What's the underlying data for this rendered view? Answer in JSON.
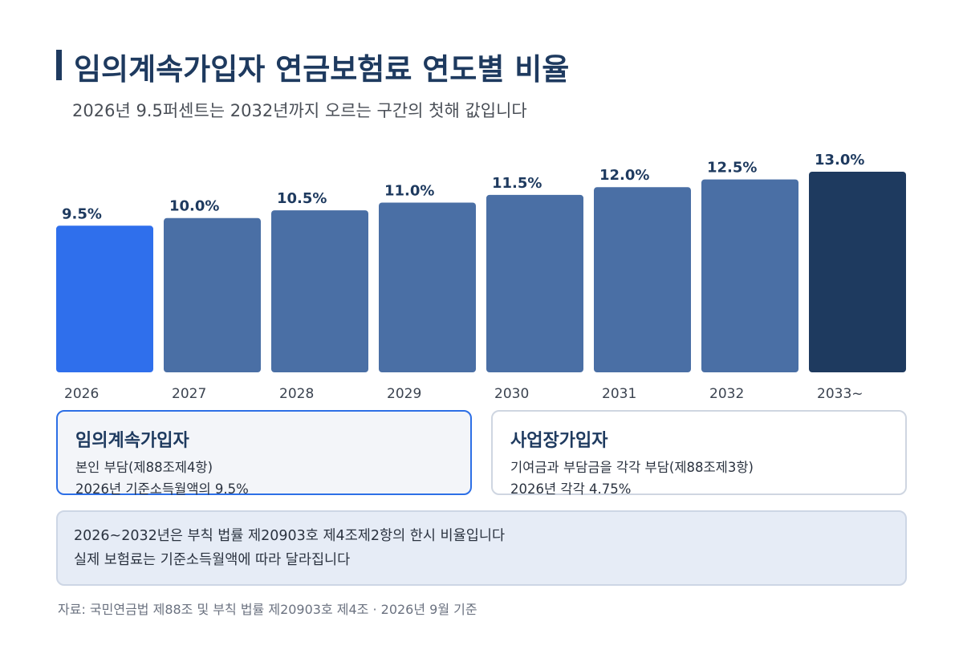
{
  "title": "임의계속가입자 연금보험료 연도별 비율",
  "subtitle": "2026년 9.5퍼센트는 2032년까지 오르는 구간의 첫해 값입니다",
  "chart_data": {
    "type": "bar",
    "categories": [
      "2026",
      "2027",
      "2028",
      "2029",
      "2030",
      "2031",
      "2032",
      "2033~"
    ],
    "values": [
      9.5,
      10.0,
      10.5,
      11.0,
      11.5,
      12.0,
      12.5,
      13.0
    ],
    "value_labels": [
      "9.5%",
      "10.0%",
      "10.5%",
      "11.0%",
      "11.5%",
      "12.0%",
      "12.5%",
      "13.0%"
    ],
    "unit": "%",
    "ylim": [
      0,
      13.0
    ],
    "grid": false,
    "colors": {
      "highlight_first": "#2f6fec",
      "middle": "#4a6fa5",
      "highlight_last": "#1e3a5f"
    }
  },
  "cards": {
    "left": {
      "title": "임의계속가입자",
      "line1": "본인 부담(제88조제4항)",
      "line2": "2026년 기준소득월액의 9.5%"
    },
    "right": {
      "title": "사업장가입자",
      "line1": "기여금과 부담금을 각각 부담(제88조제3항)",
      "line2": "2026년 각각 4.75%"
    }
  },
  "note": {
    "line1": "2026~2032년은 부칙 법률 제20903호 제4조제2항의 한시 비율입니다",
    "line2": "실제 보험료는 기준소득월액에 따라 달라집니다"
  },
  "source": "자료: 국민연금법 제88조 및 부칙 법률 제20903호 제4조 · 2026년 9월 기준"
}
